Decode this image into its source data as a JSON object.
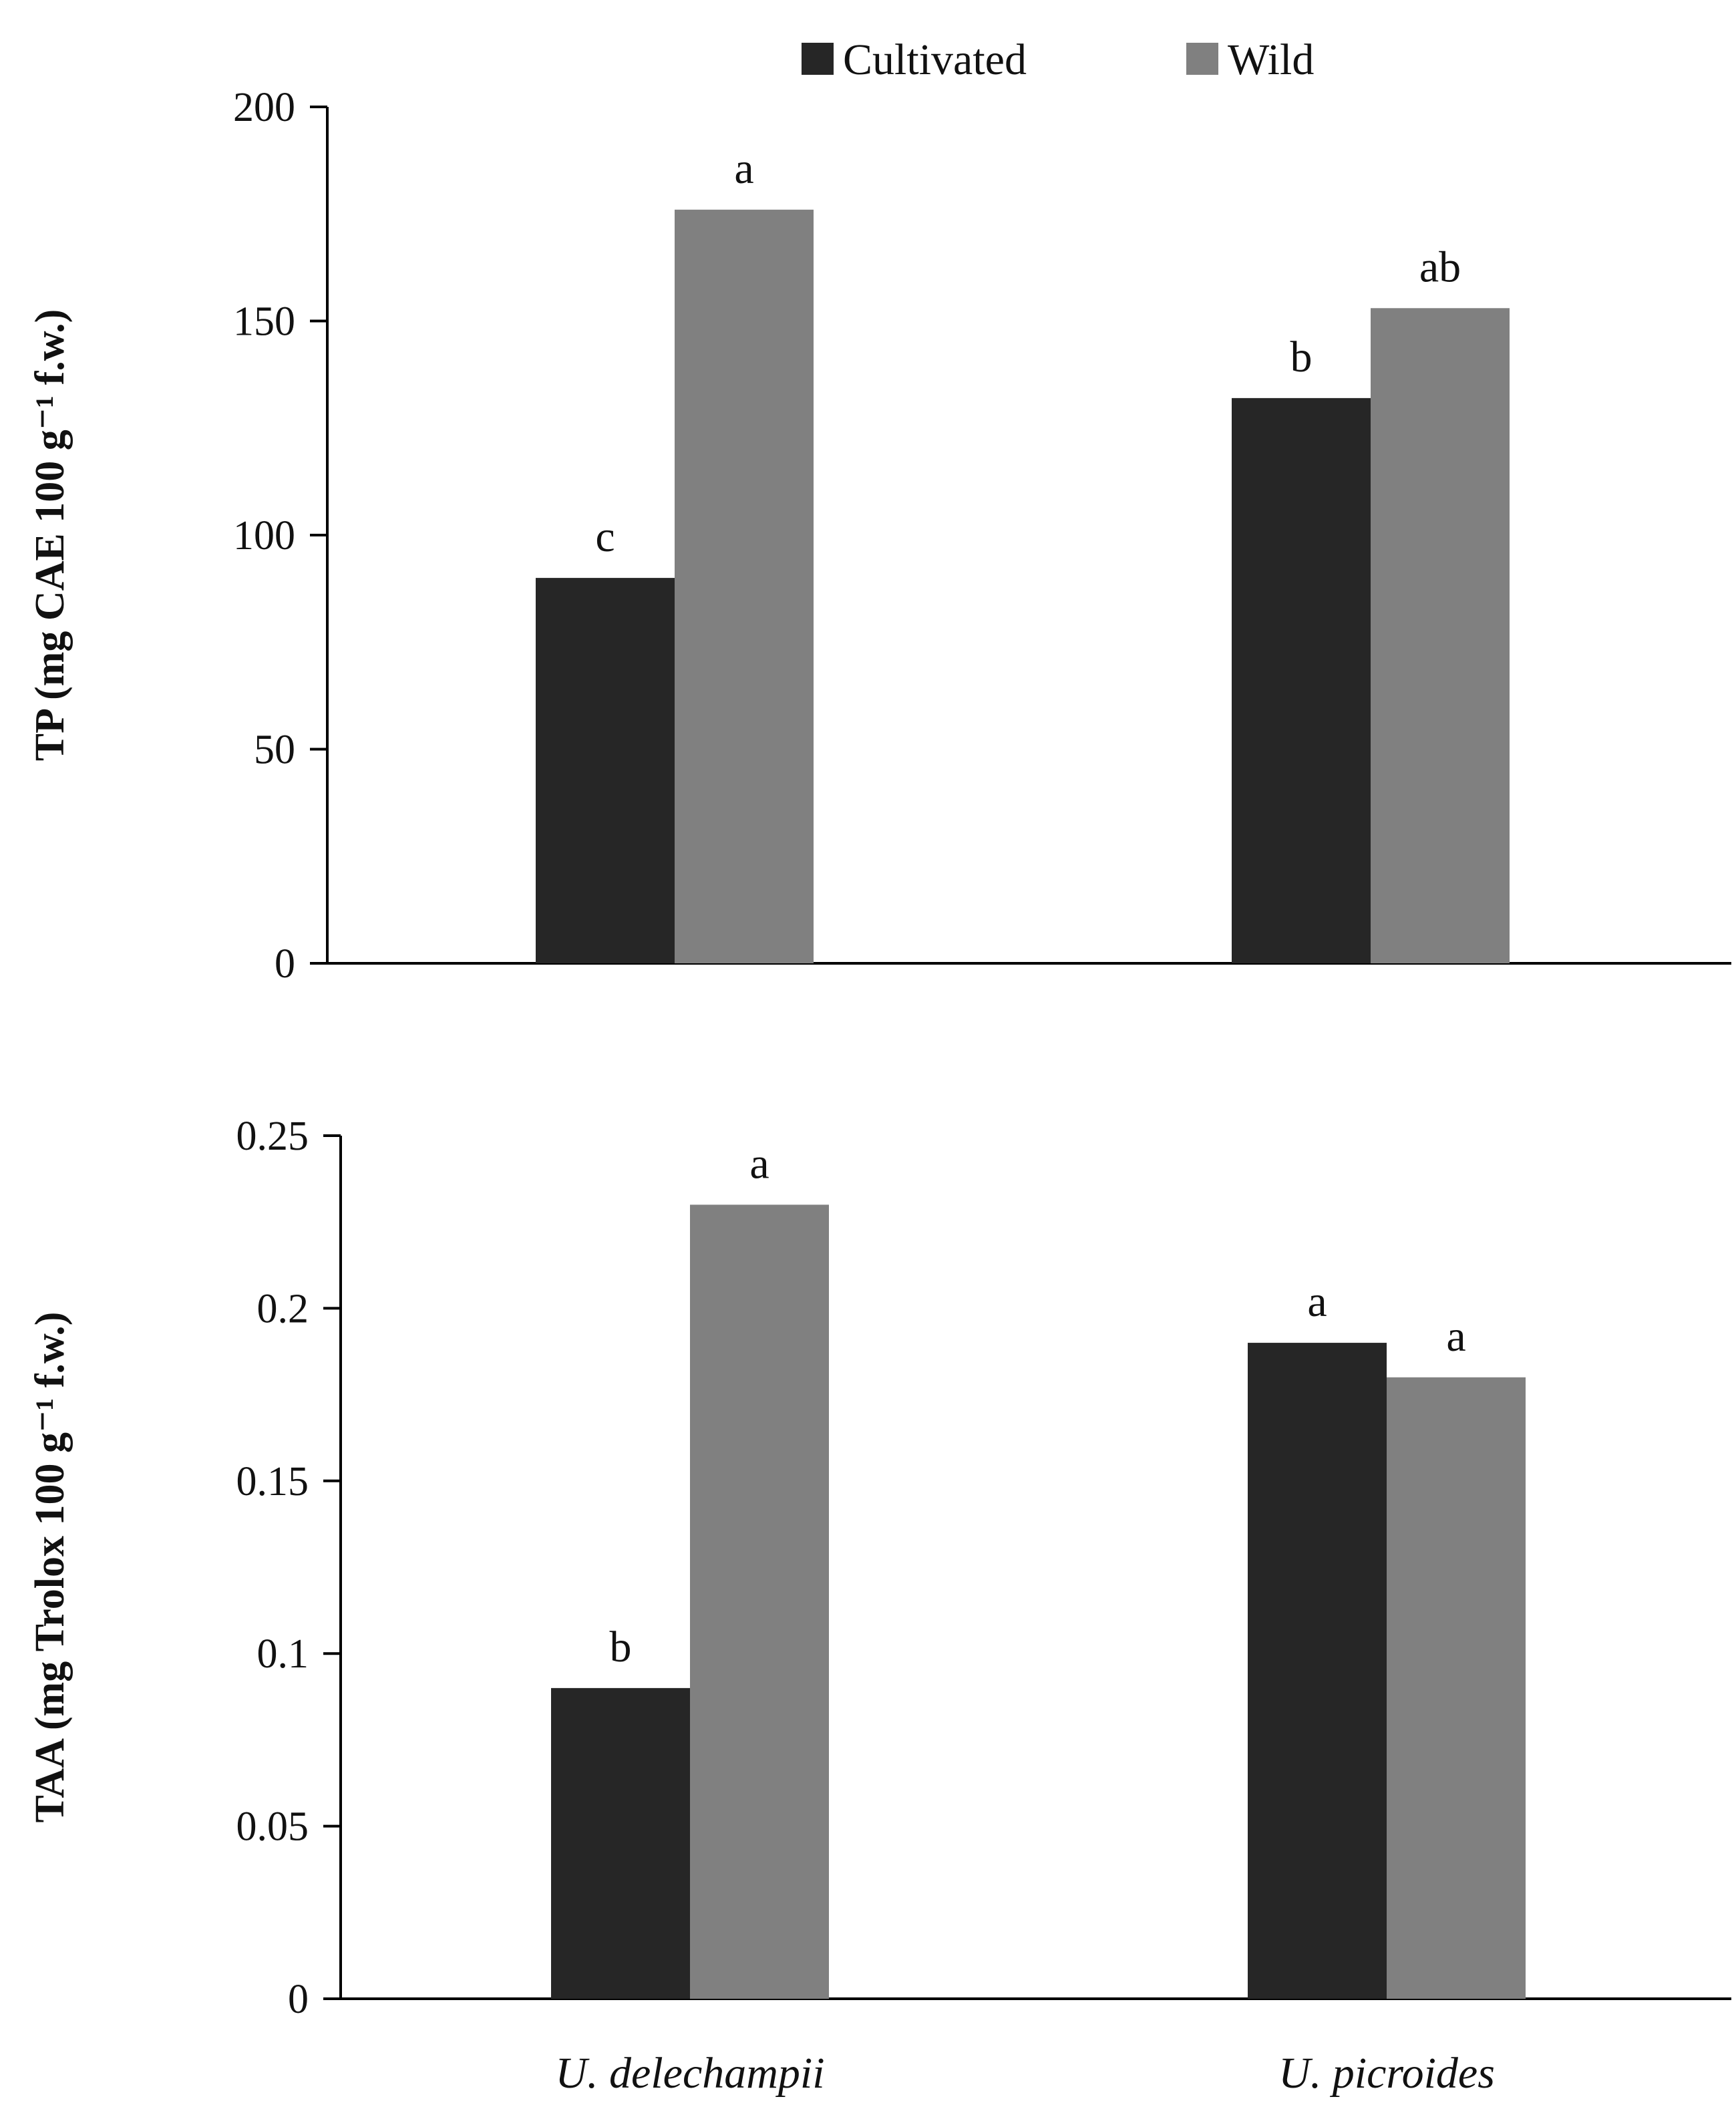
{
  "colors": {
    "cultivated": "#262626",
    "wild": "#808080",
    "axis": "#000000"
  },
  "legend": [
    {
      "name": "Cultivated",
      "color_key": "cultivated"
    },
    {
      "name": "Wild",
      "color_key": "wild"
    }
  ],
  "x_categories": [
    "U. delechampii",
    "U. picroides"
  ],
  "chart_data": [
    {
      "type": "bar",
      "id": "tp",
      "title": "",
      "xlabel": "",
      "ylabel": "TP (mg CAE 100 g⁻¹ f.w.)",
      "ylim": [
        0,
        200
      ],
      "yticks": [
        0,
        50,
        100,
        150,
        200
      ],
      "ytick_labels": [
        "0",
        "50",
        "100",
        "150",
        "200"
      ],
      "categories": [
        "U. delechampii",
        "U. picroides"
      ],
      "series": [
        {
          "name": "Cultivated",
          "values": [
            90,
            132
          ],
          "labels": [
            "c",
            "b"
          ]
        },
        {
          "name": "Wild",
          "values": [
            176,
            153
          ],
          "labels": [
            "a",
            "ab"
          ]
        }
      ]
    },
    {
      "type": "bar",
      "id": "taa",
      "title": "",
      "xlabel": "",
      "ylabel": "TAA (mg Trolox 100 g⁻¹  f.w.)",
      "ylim": [
        0,
        0.25
      ],
      "yticks": [
        0,
        0.05,
        0.1,
        0.15,
        0.2,
        0.25
      ],
      "ytick_labels": [
        "0",
        "0.05",
        "0.1",
        "0.15",
        "0.2",
        "0.25"
      ],
      "categories": [
        "U. delechampii",
        "U. picroides"
      ],
      "series": [
        {
          "name": "Cultivated",
          "values": [
            0.09,
            0.19
          ],
          "labels": [
            "b",
            "a"
          ]
        },
        {
          "name": "Wild",
          "values": [
            0.23,
            0.18
          ],
          "labels": [
            "a",
            "a"
          ]
        }
      ]
    }
  ]
}
